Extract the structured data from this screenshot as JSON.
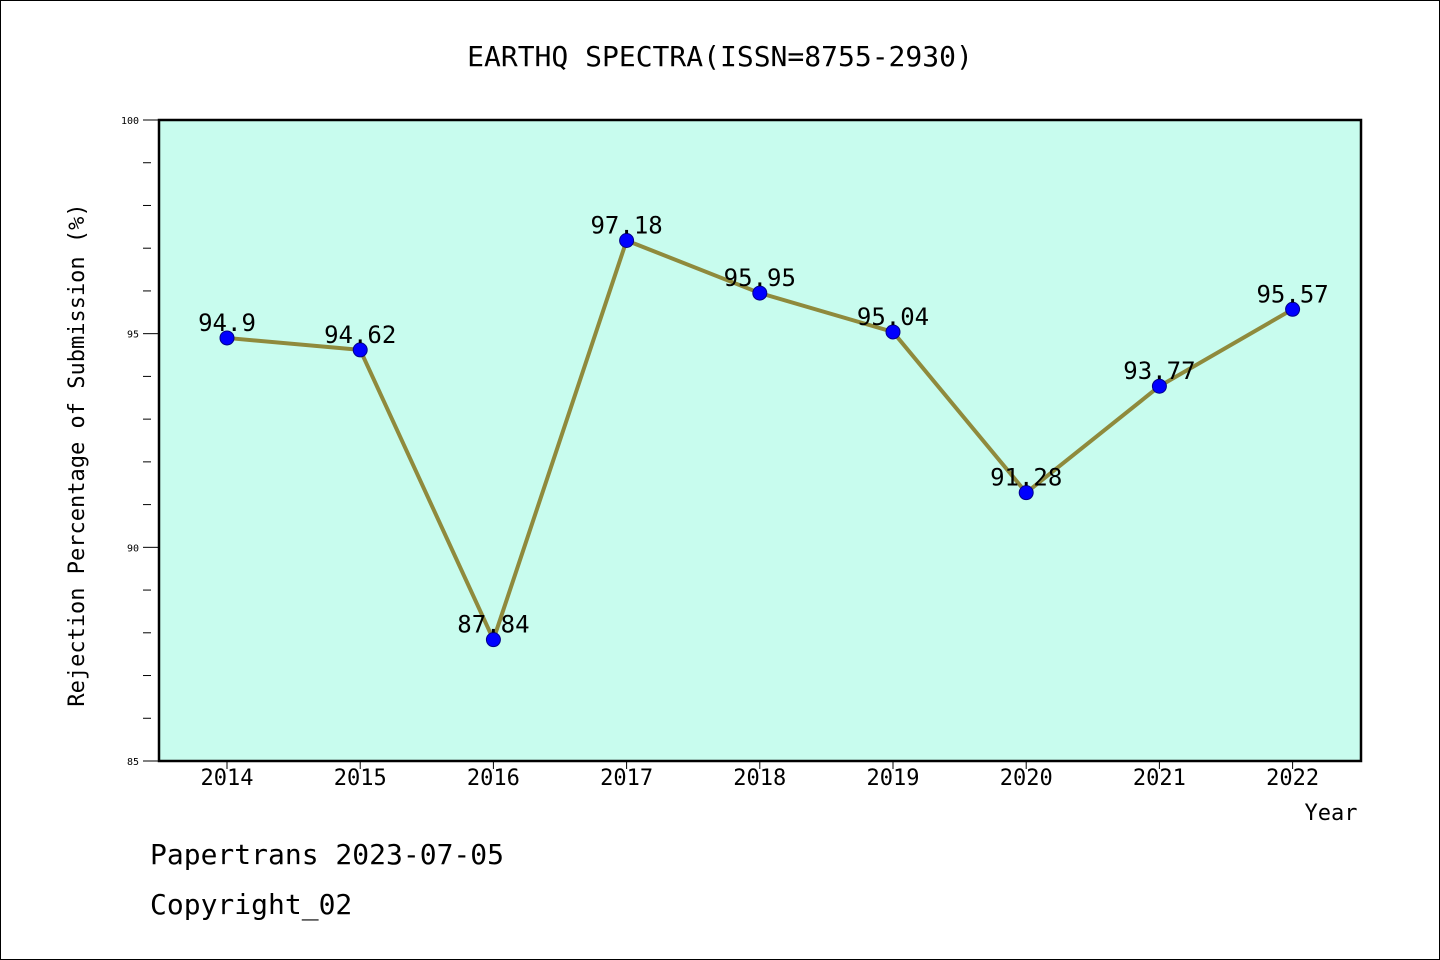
{
  "chart_data": {
    "type": "line",
    "title": "EARTHQ SPECTRA(ISSN=8755-2930)",
    "xlabel": "Year",
    "ylabel": "Rejection Percentage of Submission (%)",
    "categories": [
      "2014",
      "2015",
      "2016",
      "2017",
      "2018",
      "2019",
      "2020",
      "2021",
      "2022"
    ],
    "values": [
      94.9,
      94.62,
      87.84,
      97.18,
      95.95,
      95.04,
      91.28,
      93.77,
      95.57
    ],
    "data_labels": [
      "94.9",
      "94.62",
      "87.84",
      "97.18",
      "95.95",
      "95.04",
      "91.28",
      "93.77",
      "95.57"
    ],
    "ylim": [
      85,
      100
    ],
    "yticks": [
      85,
      90,
      95,
      100
    ],
    "grid": false,
    "colors": {
      "plot_background": "#c8fcee",
      "line": "#8f8a3c",
      "marker": "#0000ff"
    }
  },
  "footer": {
    "line1": "Papertrans 2023-07-05",
    "line2": "Copyright_02"
  }
}
